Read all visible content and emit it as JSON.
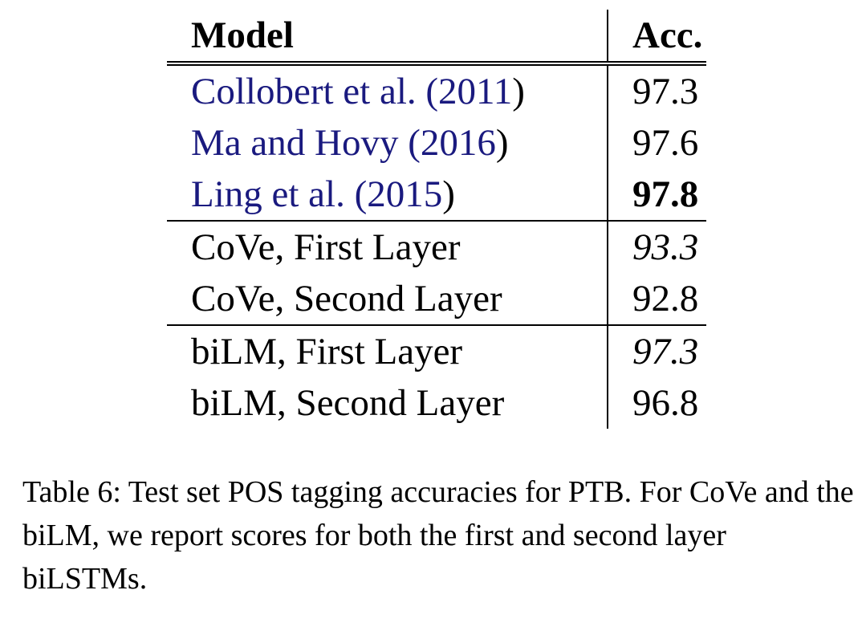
{
  "table": {
    "header": {
      "model": "Model",
      "acc": "Acc."
    },
    "groups": [
      [
        {
          "cite_name": "Collobert et al. (",
          "cite_year": "2011",
          "cite_close": ")",
          "acc": "97.3",
          "style": "normal"
        },
        {
          "cite_name": "Ma and Hovy (",
          "cite_year": "2016",
          "cite_close": ")",
          "acc": "97.6",
          "style": "normal"
        },
        {
          "cite_name": "Ling et al. (",
          "cite_year": "2015",
          "cite_close": ")",
          "acc": "97.8",
          "style": "bold"
        }
      ],
      [
        {
          "model": "CoVe, First Layer",
          "acc": "93.3",
          "style": "italic"
        },
        {
          "model": "CoVe, Second Layer",
          "acc": "92.8",
          "style": "normal"
        }
      ],
      [
        {
          "model": "biLM, First Layer",
          "acc": "97.3",
          "style": "italic"
        },
        {
          "model": "biLM, Second Layer",
          "acc": "96.8",
          "style": "normal"
        }
      ]
    ]
  },
  "caption": {
    "label": "Table 6:",
    "text": "Test set POS tagging accuracies for PTB. For CoVe and the biLM, we report scores for both the first and second layer biLSTMs."
  },
  "colors": {
    "citation": "#1a1a7f",
    "text": "#000000",
    "background": "#ffffff"
  }
}
